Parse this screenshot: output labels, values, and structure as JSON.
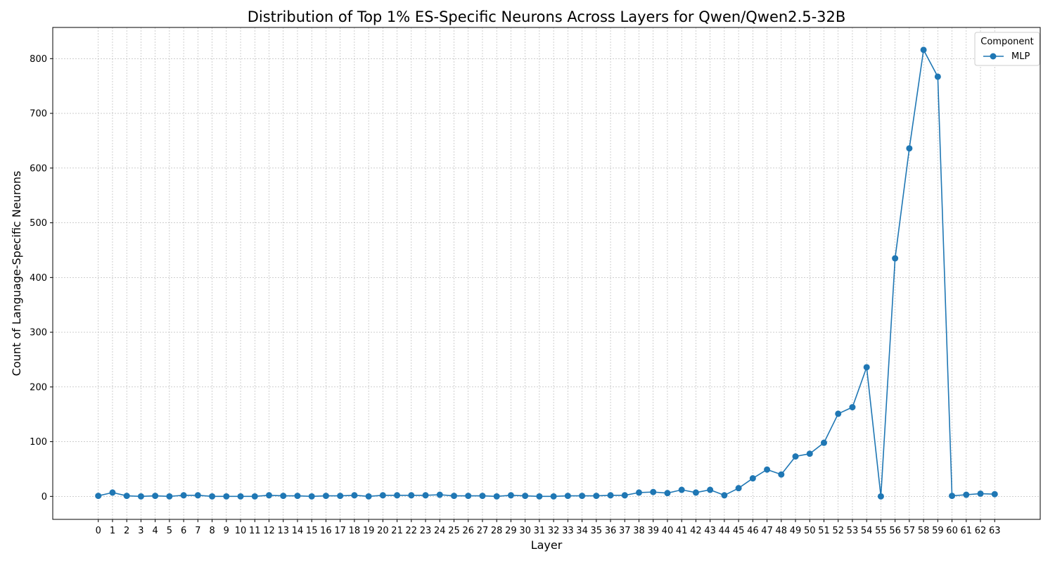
{
  "chart_data": {
    "type": "line",
    "title": "Distribution of Top 1% ES-Specific Neurons Across Layers for Qwen/Qwen2.5-32B",
    "xlabel": "Layer",
    "ylabel": "Count of Language-Specific Neurons",
    "x": [
      0,
      1,
      2,
      3,
      4,
      5,
      6,
      7,
      8,
      9,
      10,
      11,
      12,
      13,
      14,
      15,
      16,
      17,
      18,
      19,
      20,
      21,
      22,
      23,
      24,
      25,
      26,
      27,
      28,
      29,
      30,
      31,
      32,
      33,
      34,
      35,
      36,
      37,
      38,
      39,
      40,
      41,
      42,
      43,
      44,
      45,
      46,
      47,
      48,
      49,
      50,
      51,
      52,
      53,
      54,
      55,
      56,
      57,
      58,
      59,
      60,
      61,
      62,
      63
    ],
    "series": [
      {
        "name": "MLP",
        "color": "#1f77b4",
        "marker": "circle",
        "values": [
          1,
          7,
          1,
          0,
          1,
          0,
          2,
          2,
          0,
          0,
          0,
          0,
          2,
          1,
          1,
          0,
          1,
          1,
          2,
          0,
          2,
          2,
          2,
          2,
          3,
          1,
          1,
          1,
          0,
          2,
          1,
          0,
          0,
          1,
          1,
          1,
          2,
          2,
          7,
          8,
          6,
          12,
          7,
          12,
          2,
          15,
          33,
          49,
          40,
          73,
          78,
          98,
          151,
          163,
          236,
          0,
          435,
          636,
          816,
          767,
          1,
          3,
          5,
          4
        ]
      }
    ],
    "ylim": [
      -42,
      857
    ],
    "yticks": [
      0,
      100,
      200,
      300,
      400,
      500,
      600,
      700,
      800
    ],
    "grid": true,
    "legend": {
      "title": "Component",
      "placement": "top-right"
    }
  }
}
